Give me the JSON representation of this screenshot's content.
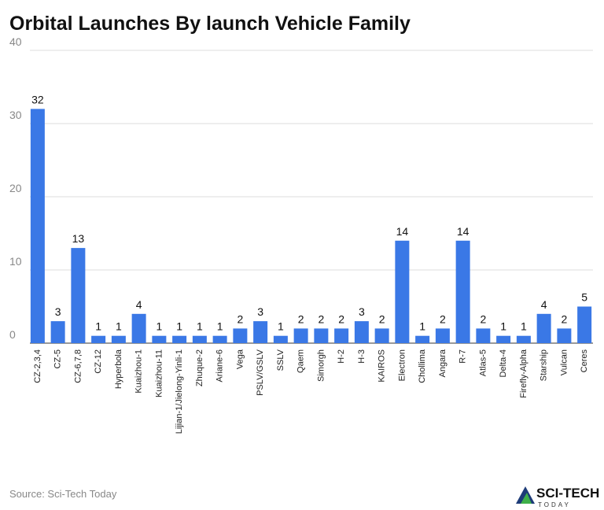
{
  "chart_data": {
    "type": "bar",
    "title": "Orbital Launches By launch Vehicle Family",
    "categories": [
      "CZ-2,3,4",
      "CZ-5",
      "CZ-6,7,8",
      "CZ-12",
      "Hyperbola",
      "Kuaizhou-1",
      "Kuaizhou-11",
      "Lijian-1/Jielong-Yinli-1",
      "Zhuque-2",
      "Ariane-6",
      "Vega",
      "PSLV/GSLV",
      "SSLV",
      "Qaem",
      "Simorgh",
      "H-2",
      "H-3",
      "KAIROS",
      "Electron",
      "Chollima",
      "Angara",
      "R-7",
      "Atlas-5",
      "Delta-4",
      "Firefly-Alpha",
      "Starship",
      "Vulcan",
      "Ceres"
    ],
    "values": [
      32,
      3,
      13,
      1,
      1,
      4,
      1,
      1,
      1,
      1,
      2,
      3,
      1,
      2,
      2,
      2,
      3,
      2,
      14,
      1,
      2,
      14,
      2,
      1,
      1,
      4,
      2,
      5
    ],
    "color": "#3a78e6",
    "ylim": [
      0,
      40
    ],
    "yticks": [
      0,
      10,
      20,
      30,
      40
    ],
    "grid": true,
    "source": "Source: Sci-Tech Today",
    "logo": {
      "main": "SCI-TECH",
      "sub": "TODAY"
    }
  }
}
